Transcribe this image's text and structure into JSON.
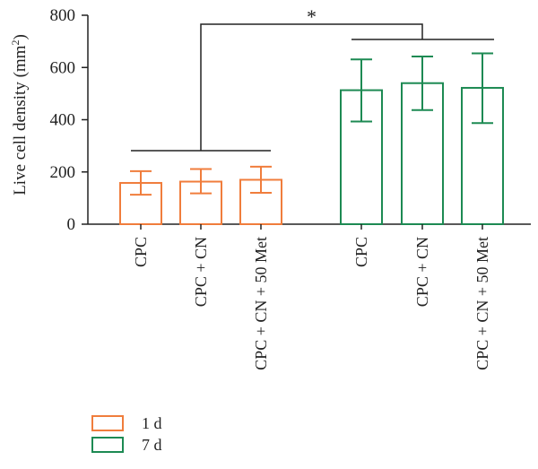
{
  "chart_data": {
    "type": "bar",
    "ylabel_text": "Live cell density (mm",
    "ylabel_sup": "2",
    "ylabel_close": ")",
    "ylim": [
      0,
      800
    ],
    "yticks": [
      "0",
      "200",
      "400",
      "600",
      "800"
    ],
    "grid": false,
    "legend_position": "bottom-left",
    "significance": "*",
    "series": [
      {
        "name": "1 d",
        "color": "#f07d3c",
        "categories": [
          "CPC",
          "CPC + CN",
          "CPC + CN + 50 Met"
        ],
        "values": [
          158,
          163,
          170
        ],
        "err_low": [
          45,
          45,
          50
        ],
        "err_high": [
          45,
          48,
          50
        ]
      },
      {
        "name": "7 d",
        "color": "#1d8a53",
        "categories": [
          "CPC",
          "CPC + CN",
          "CPC + CN + 50 Met"
        ],
        "values": [
          513,
          540,
          522
        ],
        "err_low": [
          120,
          103,
          135
        ],
        "err_high": [
          118,
          102,
          132
        ]
      }
    ]
  }
}
